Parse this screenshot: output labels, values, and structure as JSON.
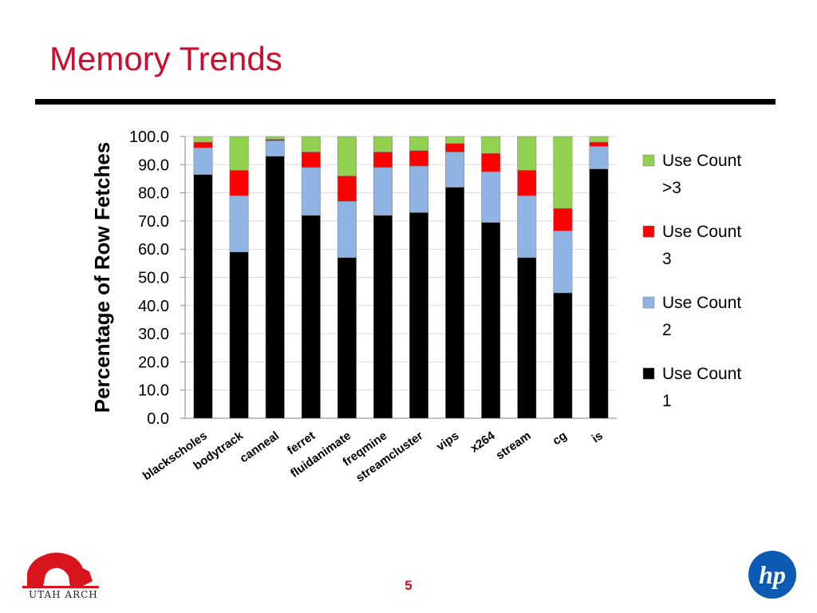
{
  "slide": {
    "title": "Memory Trends",
    "page_number": "5",
    "logo_left_text": "UTAH ARCH",
    "logo_right_text": "hp"
  },
  "colors": {
    "title": "#c8102e",
    "use_count_1": "#000000",
    "use_count_2": "#8fb4e3",
    "use_count_3": "#ff0000",
    "use_count_gt3": "#92d050"
  },
  "chart_data": {
    "type": "bar",
    "stacked": true,
    "title": "",
    "xlabel": "",
    "ylabel": "Percentage of Row Fetches",
    "ylim": [
      0,
      100
    ],
    "ytick_labels": [
      "0.0",
      "10.0",
      "20.0",
      "30.0",
      "40.0",
      "50.0",
      "60.0",
      "70.0",
      "80.0",
      "90.0",
      "100.0"
    ],
    "grid": true,
    "legend_position": "right",
    "categories": [
      "blackscholes",
      "bodytrack",
      "canneal",
      "ferret",
      "fluidanimate",
      "freqmine",
      "streamcluster",
      "vips",
      "x264",
      "stream",
      "cg",
      "is"
    ],
    "series": [
      {
        "name": "Use Count 1",
        "color": "#000000",
        "values": [
          86.5,
          59.0,
          93.0,
          72.0,
          57.0,
          72.0,
          73.0,
          82.0,
          69.5,
          57.0,
          44.5,
          88.5
        ]
      },
      {
        "name": "Use Count 2",
        "color": "#8fb4e3",
        "values": [
          9.5,
          20.0,
          5.5,
          17.0,
          20.0,
          17.0,
          16.5,
          12.5,
          18.0,
          22.0,
          22.0,
          8.0
        ]
      },
      {
        "name": "Use Count 3",
        "color": "#ff0000",
        "values": [
          2.0,
          9.0,
          0.5,
          5.5,
          9.0,
          5.5,
          5.5,
          3.0,
          6.5,
          9.0,
          8.0,
          1.5
        ]
      },
      {
        "name": "Use Count >3",
        "color": "#92d050",
        "values": [
          2.0,
          12.0,
          1.0,
          5.5,
          14.0,
          5.5,
          5.0,
          2.5,
          6.0,
          12.0,
          25.5,
          2.0
        ]
      }
    ],
    "legend_entries": [
      {
        "line1": "Use Count",
        "line2": ">3",
        "color": "#92d050"
      },
      {
        "line1": "Use Count",
        "line2": "3",
        "color": "#ff0000"
      },
      {
        "line1": "Use Count",
        "line2": "2",
        "color": "#8fb4e3"
      },
      {
        "line1": "Use Count",
        "line2": "1",
        "color": "#000000"
      }
    ]
  }
}
